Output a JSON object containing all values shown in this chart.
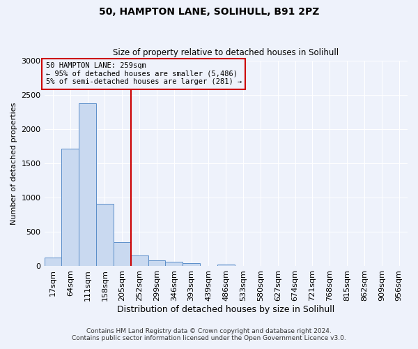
{
  "title1": "50, HAMPTON LANE, SOLIHULL, B91 2PZ",
  "title2": "Size of property relative to detached houses in Solihull",
  "xlabel": "Distribution of detached houses by size in Solihull",
  "ylabel": "Number of detached properties",
  "bin_labels": [
    "17sqm",
    "64sqm",
    "111sqm",
    "158sqm",
    "205sqm",
    "252sqm",
    "299sqm",
    "346sqm",
    "393sqm",
    "439sqm",
    "486sqm",
    "533sqm",
    "580sqm",
    "627sqm",
    "674sqm",
    "721sqm",
    "768sqm",
    "815sqm",
    "862sqm",
    "909sqm",
    "956sqm"
  ],
  "bar_heights": [
    130,
    1720,
    2380,
    910,
    350,
    160,
    85,
    65,
    45,
    0,
    20,
    0,
    0,
    0,
    0,
    0,
    0,
    0,
    0,
    0,
    0
  ],
  "bar_color": "#c9d9f0",
  "bar_edge_color": "#5b8ec9",
  "vline_color": "#cc0000",
  "annotation_text": "50 HAMPTON LANE: 259sqm\n← 95% of detached houses are smaller (5,486)\n5% of semi-detached houses are larger (281) →",
  "ylim": [
    0,
    3000
  ],
  "yticks": [
    0,
    500,
    1000,
    1500,
    2000,
    2500,
    3000
  ],
  "footer1": "Contains HM Land Registry data © Crown copyright and database right 2024.",
  "footer2": "Contains public sector information licensed under the Open Government Licence v3.0.",
  "bg_color": "#eef2fb",
  "grid_color": "#ffffff"
}
